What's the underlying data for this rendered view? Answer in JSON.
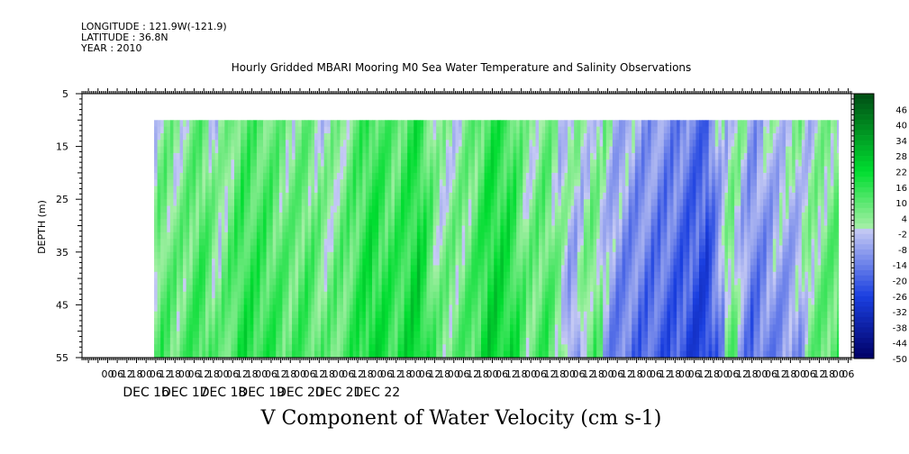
{
  "header": {
    "longitude": "LONGITUDE : 121.9W(-121.9)",
    "latitude": "LATITUDE : 36.8N",
    "year": "YEAR : 2010"
  },
  "chart_data": {
    "type": "heatmap",
    "title": "Hourly Gridded MBARI Mooring M0 Sea Water Temperature and Salinity Observations",
    "xlabel": "V Component of Water Velocity (cm s-1)",
    "ylabel": "DEPTH (m)",
    "x_range_hours": [
      -40,
      440
    ],
    "data_start_hour": 5,
    "data_end_hour": 432,
    "y_range": [
      5,
      55
    ],
    "depth_data_top": 10,
    "y_ticks": [
      5,
      15,
      25,
      35,
      45,
      55
    ],
    "x_hour_ticks": [
      0,
      6,
      12,
      18
    ],
    "days": [
      "DEC 16",
      "DEC 17",
      "DEC 18",
      "DEC 19",
      "DEC 20",
      "DEC 21",
      "DEC 22"
    ],
    "colorbar_labels": [
      46,
      40,
      34,
      28,
      22,
      16,
      10,
      4,
      -2,
      -8,
      -14,
      -20,
      -26,
      -32,
      -38,
      -44,
      -50
    ],
    "color_range": [
      -50,
      52
    ],
    "colors": {
      "neg_far": "#000066",
      "neg_mid": "#1a3fe0",
      "neg_near": "#c8ccf4",
      "pos_near": "#a8f0a8",
      "pos_mid": "#00dd30",
      "pos_far": "#004d14"
    },
    "series_hourly_mean": [
      {
        "hour": 5,
        "value": 2
      },
      {
        "hour": 10,
        "value": 8
      },
      {
        "hour": 20,
        "value": 5
      },
      {
        "hour": 35,
        "value": 12
      },
      {
        "hour": 45,
        "value": 2
      },
      {
        "hour": 60,
        "value": 14
      },
      {
        "hour": 75,
        "value": 12
      },
      {
        "hour": 90,
        "value": 7
      },
      {
        "hour": 100,
        "value": 10
      },
      {
        "hour": 112,
        "value": 3
      },
      {
        "hour": 125,
        "value": 8
      },
      {
        "hour": 140,
        "value": 18
      },
      {
        "hour": 155,
        "value": 12
      },
      {
        "hour": 170,
        "value": 20
      },
      {
        "hour": 182,
        "value": 3
      },
      {
        "hour": 195,
        "value": 5
      },
      {
        "hour": 205,
        "value": 10
      },
      {
        "hour": 215,
        "value": 20
      },
      {
        "hour": 228,
        "value": 16
      },
      {
        "hour": 238,
        "value": 4
      },
      {
        "hour": 250,
        "value": 10
      },
      {
        "hour": 258,
        "value": 2
      },
      {
        "hour": 266,
        "value": -4
      },
      {
        "hour": 280,
        "value": 6
      },
      {
        "hour": 292,
        "value": -8
      },
      {
        "hour": 310,
        "value": -12
      },
      {
        "hour": 330,
        "value": -16
      },
      {
        "hour": 350,
        "value": -22
      },
      {
        "hour": 365,
        "value": 6
      },
      {
        "hour": 378,
        "value": -12
      },
      {
        "hour": 392,
        "value": -6
      },
      {
        "hour": 405,
        "value": -4
      },
      {
        "hour": 418,
        "value": 4
      },
      {
        "hour": 430,
        "value": 8
      }
    ]
  }
}
